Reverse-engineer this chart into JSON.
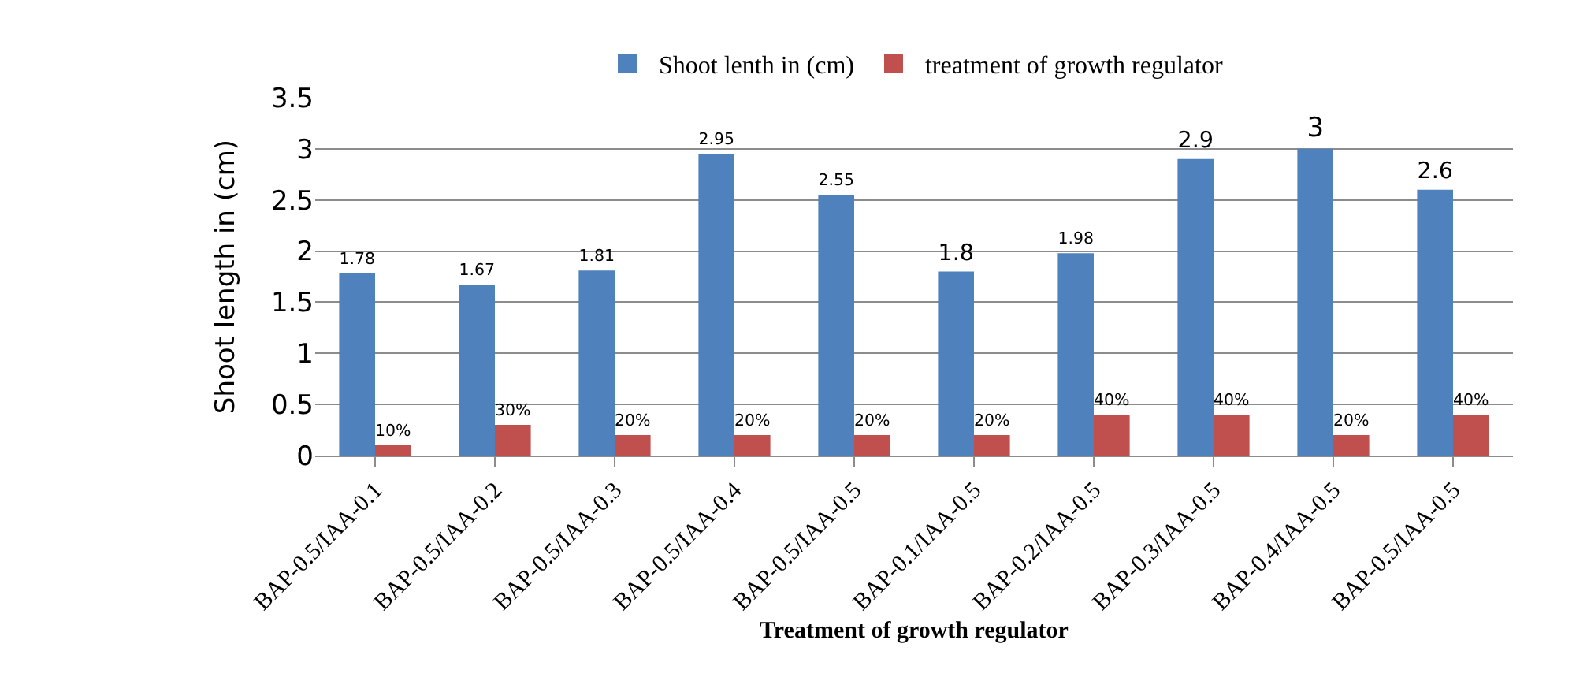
{
  "chart_data": {
    "type": "bar",
    "xlabel": "Treatment of growth regulator",
    "ylabel": "Shoot length in (cm)",
    "categories": [
      "BAP-0.5/IAA-0.1",
      "BAP-0.5/IAA-0.2",
      "BAP-0.5/IAA-0.3",
      "BAP-0.5/IAA-0.4",
      "BAP-0.5/IAA-0.5",
      "BAP-0.1/IAA-0.5",
      "BAP-0.2/IAA-0.5",
      "BAP-0.3/IAA-0.5",
      "BAP-0.4/IAA-0.5",
      "BAP-0.5/IAA-0.5"
    ],
    "series": [
      {
        "name": "Shoot lenth in (cm)",
        "color": "#4f81bd",
        "values": [
          1.78,
          1.67,
          1.81,
          2.95,
          2.55,
          1.8,
          1.98,
          2.9,
          3,
          2.6
        ],
        "value_labels": [
          "1.78",
          "1.67",
          "1.81",
          "2.95",
          "2.55",
          "1.8",
          "1.98",
          "2.9",
          "3",
          "2.6"
        ]
      },
      {
        "name": "treatment of growth regulator",
        "color": "#c0504d",
        "values": [
          0.1,
          0.3,
          0.2,
          0.2,
          0.2,
          0.2,
          0.4,
          0.4,
          0.2,
          0.4
        ],
        "value_labels": [
          "10%",
          "30%",
          "20%",
          "20%",
          "20%",
          "20%",
          "40%",
          "40%",
          "20%",
          "40%"
        ]
      }
    ],
    "ylim": [
      0,
      3.5
    ],
    "yticks": [
      0,
      0.5,
      1,
      1.5,
      2,
      2.5,
      3,
      3.5
    ],
    "grid": "y",
    "legend": "top"
  }
}
